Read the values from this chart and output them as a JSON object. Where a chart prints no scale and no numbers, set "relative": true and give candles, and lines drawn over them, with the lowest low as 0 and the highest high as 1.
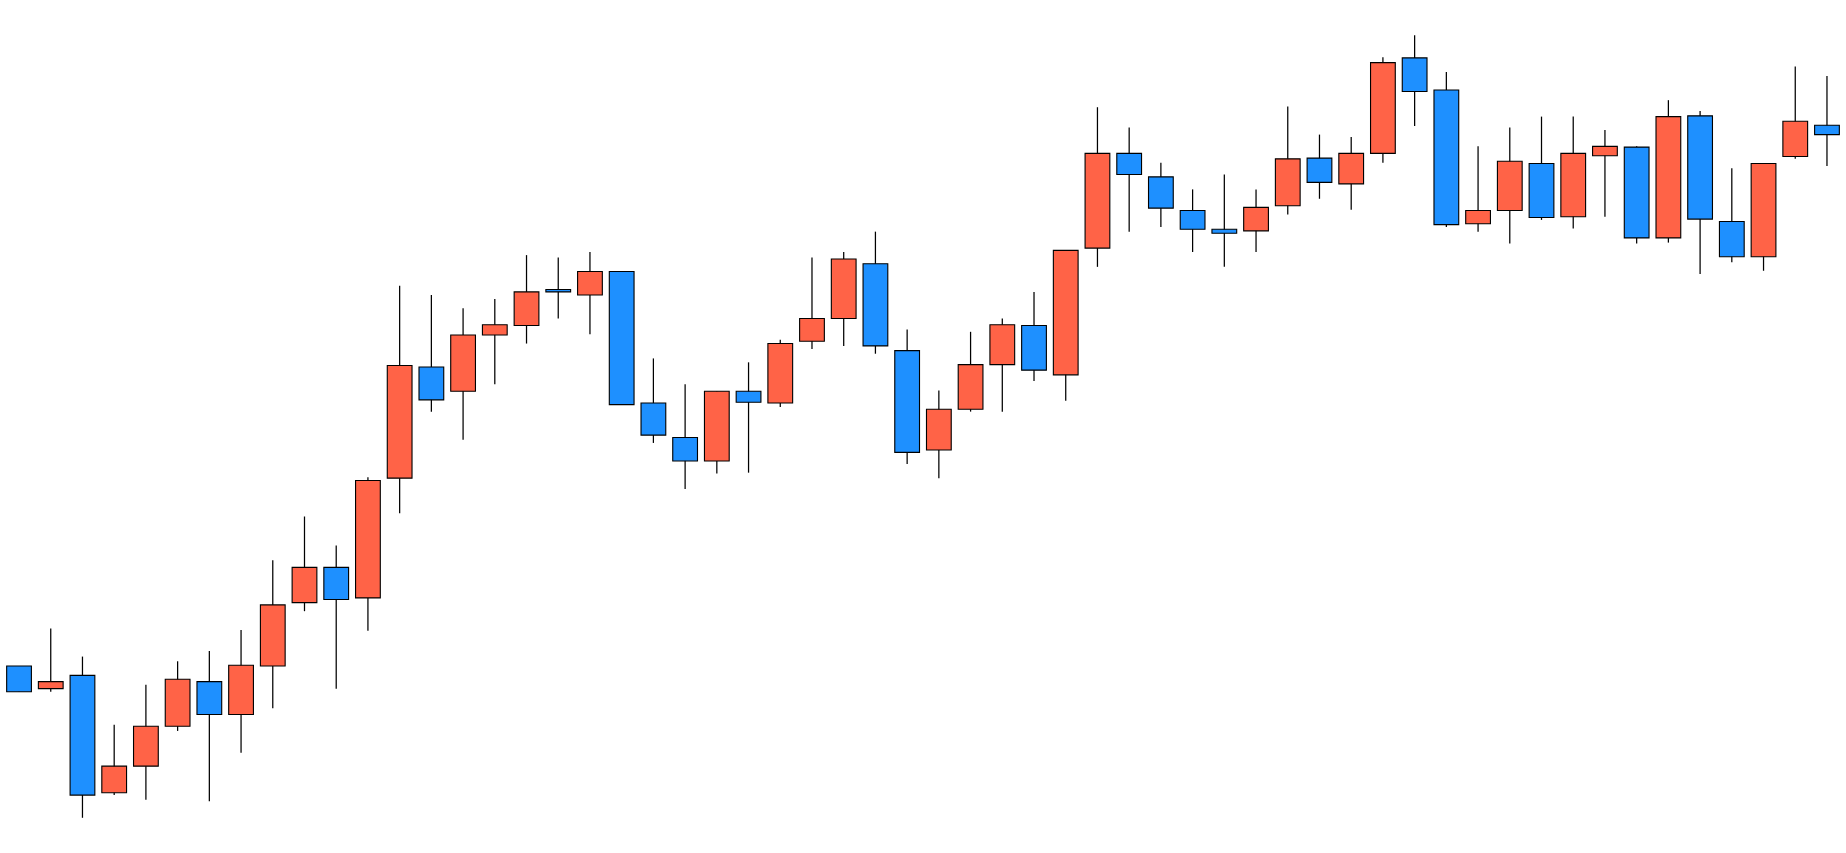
{
  "chart_data": {
    "type": "candlestick",
    "relative": true,
    "categories": [
      null,
      null,
      null,
      null,
      null,
      null,
      null,
      null,
      null,
      null,
      null,
      null,
      null,
      null,
      null,
      null,
      null,
      null,
      null,
      null,
      null,
      null,
      null,
      null,
      null,
      null,
      null,
      null,
      null,
      null,
      null,
      null,
      null,
      null,
      null,
      null,
      null,
      null,
      null,
      null,
      null,
      null,
      null,
      null,
      null,
      null,
      null,
      null,
      null,
      null,
      null,
      null,
      null,
      null,
      null,
      null,
      null,
      null
    ],
    "ohlc": [
      [
        0.194,
        0.194,
        0.161,
        0.161
      ],
      [
        0.165,
        0.242,
        0.161,
        0.174
      ],
      [
        0.182,
        0.206,
        0.0,
        0.029
      ],
      [
        0.032,
        0.119,
        0.029,
        0.066
      ],
      [
        0.066,
        0.17,
        0.023,
        0.117
      ],
      [
        0.117,
        0.2,
        0.111,
        0.177
      ],
      [
        0.174,
        0.213,
        0.021,
        0.132
      ],
      [
        0.132,
        0.24,
        0.083,
        0.195
      ],
      [
        0.194,
        0.329,
        0.14,
        0.272
      ],
      [
        0.275,
        0.385,
        0.264,
        0.32
      ],
      [
        0.32,
        0.348,
        0.165,
        0.279
      ],
      [
        0.281,
        0.435,
        0.239,
        0.431
      ],
      [
        0.434,
        0.68,
        0.389,
        0.578
      ],
      [
        0.576,
        0.668,
        0.519,
        0.534
      ],
      [
        0.545,
        0.651,
        0.483,
        0.617
      ],
      [
        0.617,
        0.663,
        0.554,
        0.63
      ],
      [
        0.629,
        0.719,
        0.606,
        0.672
      ],
      [
        0.674,
        0.716,
        0.638,
        0.672
      ],
      [
        0.668,
        0.723,
        0.618,
        0.698
      ],
      [
        0.698,
        0.698,
        0.528,
        0.528
      ],
      [
        0.53,
        0.587,
        0.479,
        0.489
      ],
      [
        0.486,
        0.554,
        0.42,
        0.456
      ],
      [
        0.456,
        0.545,
        0.44,
        0.545
      ],
      [
        0.545,
        0.582,
        0.441,
        0.531
      ],
      [
        0.53,
        0.611,
        0.525,
        0.606
      ],
      [
        0.609,
        0.716,
        0.599,
        0.638
      ],
      [
        0.638,
        0.723,
        0.603,
        0.714
      ],
      [
        0.708,
        0.749,
        0.593,
        0.603
      ],
      [
        0.597,
        0.624,
        0.452,
        0.467
      ],
      [
        0.47,
        0.546,
        0.434,
        0.522
      ],
      [
        0.522,
        0.621,
        0.519,
        0.579
      ],
      [
        0.579,
        0.638,
        0.519,
        0.63
      ],
      [
        0.629,
        0.672,
        0.558,
        0.572
      ],
      [
        0.566,
        0.725,
        0.533,
        0.725
      ],
      [
        0.728,
        0.908,
        0.704,
        0.849
      ],
      [
        0.849,
        0.882,
        0.749,
        0.822
      ],
      [
        0.819,
        0.837,
        0.755,
        0.779
      ],
      [
        0.776,
        0.803,
        0.723,
        0.752
      ],
      [
        0.752,
        0.822,
        0.704,
        0.747
      ],
      [
        0.75,
        0.803,
        0.723,
        0.78
      ],
      [
        0.782,
        0.909,
        0.771,
        0.842
      ],
      [
        0.843,
        0.873,
        0.791,
        0.812
      ],
      [
        0.81,
        0.87,
        0.777,
        0.849
      ],
      [
        0.849,
        0.972,
        0.837,
        0.965
      ],
      [
        0.971,
        1.0,
        0.884,
        0.928
      ],
      [
        0.93,
        0.953,
        0.755,
        0.758
      ],
      [
        0.759,
        0.858,
        0.749,
        0.776
      ],
      [
        0.776,
        0.882,
        0.734,
        0.839
      ],
      [
        0.836,
        0.896,
        0.764,
        0.767
      ],
      [
        0.768,
        0.896,
        0.753,
        0.849
      ],
      [
        0.846,
        0.879,
        0.768,
        0.858
      ],
      [
        0.857,
        0.858,
        0.734,
        0.741
      ],
      [
        0.741,
        0.917,
        0.735,
        0.896
      ],
      [
        0.897,
        0.903,
        0.695,
        0.765
      ],
      [
        0.762,
        0.83,
        0.71,
        0.717
      ],
      [
        0.717,
        0.836,
        0.699,
        0.836
      ],
      [
        0.845,
        0.96,
        0.842,
        0.89
      ],
      [
        0.885,
        0.948,
        0.833,
        0.873
      ]
    ],
    "colors": [
      "#1e90ff",
      "#ff6347",
      "#1e90ff",
      "#ff6347",
      "#ff6347",
      "#ff6347",
      "#1e90ff",
      "#ff6347",
      "#ff6347",
      "#ff6347",
      "#1e90ff",
      "#ff6347",
      "#ff6347",
      "#1e90ff",
      "#ff6347",
      "#ff6347",
      "#ff6347",
      "#1e90ff",
      "#ff6347",
      "#1e90ff",
      "#1e90ff",
      "#1e90ff",
      "#ff6347",
      "#1e90ff",
      "#ff6347",
      "#ff6347",
      "#ff6347",
      "#1e90ff",
      "#1e90ff",
      "#ff6347",
      "#ff6347",
      "#ff6347",
      "#1e90ff",
      "#ff6347",
      "#ff6347",
      "#1e90ff",
      "#1e90ff",
      "#1e90ff",
      "#1e90ff",
      "#ff6347",
      "#ff6347",
      "#1e90ff",
      "#ff6347",
      "#ff6347",
      "#1e90ff",
      "#1e90ff",
      "#ff6347",
      "#ff6347",
      "#1e90ff",
      "#ff6347",
      "#ff6347",
      "#1e90ff",
      "#ff6347",
      "#1e90ff",
      "#1e90ff",
      "#ff6347",
      "#ff6347",
      "#1e90ff"
    ]
  }
}
